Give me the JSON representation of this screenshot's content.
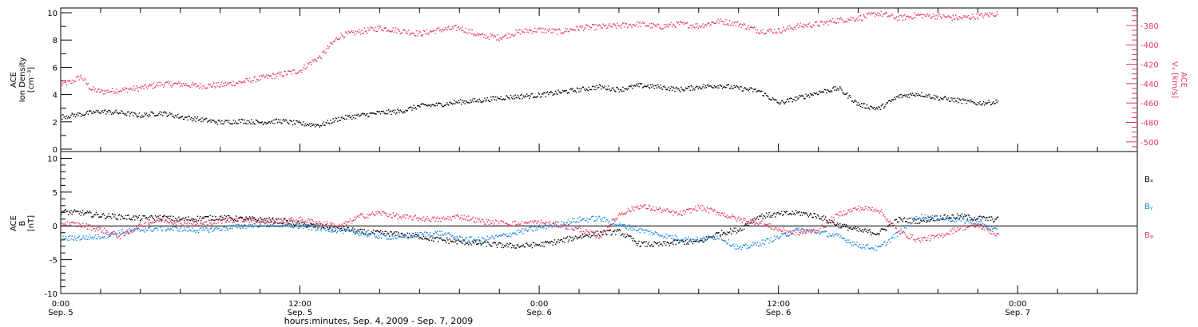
{
  "colors": {
    "density": "#000000",
    "vx": "#e6385f",
    "bx": "#000000",
    "by": "#1a86e0",
    "bz": "#e6385f",
    "frame": "#000000"
  },
  "footer": {
    "xlabel": "hours:minutes, Sep.  4, 2009 - Sep.  7, 2009"
  },
  "x_ticks": [
    {
      "hour": 0,
      "time": "0:00",
      "date": "Sep. 5"
    },
    {
      "hour": 12,
      "time": "12:00",
      "date": "Sep. 5"
    },
    {
      "hour": 24,
      "time": "0:00",
      "date": "Sep. 6"
    },
    {
      "hour": 36,
      "time": "12:00",
      "date": "Sep. 6"
    },
    {
      "hour": 48,
      "time": "0:00",
      "date": "Sep. 7"
    }
  ],
  "chart_data": [
    {
      "type": "scatter",
      "panel": "top",
      "xlabel": "hours:minutes, Sep.  4, 2009 - Sep.  7, 2009",
      "ylabel_left": [
        "ACE",
        "Ion Density",
        "[cm⁻³]"
      ],
      "ylabel_right": [
        "ACE",
        "Vₓ [km/s]"
      ],
      "xlim": [
        0,
        54
      ],
      "ylim_left": [
        0,
        10
      ],
      "yticks_left": [
        "0",
        "2",
        "4",
        "6",
        "8",
        "10"
      ],
      "ylim_right": [
        -510,
        -362
      ],
      "yticks_right": [
        "-380",
        "-400",
        "-420",
        "-440",
        "-460",
        "-480",
        "-500"
      ],
      "series": [
        {
          "axis": "left",
          "x": [
            0,
            1,
            2,
            3,
            4,
            5,
            6,
            7,
            8,
            9,
            10,
            11,
            12,
            13,
            14,
            15,
            16,
            17,
            18,
            19,
            20,
            21,
            22,
            23,
            24,
            25,
            26,
            27,
            28,
            29,
            30,
            31,
            32,
            33,
            34,
            35,
            36,
            37,
            38,
            39,
            40,
            41,
            42,
            43,
            44,
            45,
            46,
            47
          ],
          "values": [
            2.4,
            2.6,
            2.8,
            2.7,
            2.5,
            2.7,
            2.4,
            2.2,
            2.0,
            2.1,
            2.0,
            2.1,
            1.9,
            1.8,
            2.3,
            2.5,
            2.7,
            2.8,
            3.2,
            3.3,
            3.5,
            3.6,
            3.8,
            3.9,
            4.0,
            4.2,
            4.4,
            4.6,
            4.4,
            4.7,
            4.6,
            4.4,
            4.6,
            4.7,
            4.5,
            4.3,
            3.4,
            3.8,
            4.2,
            4.5,
            3.3,
            3.0,
            3.9,
            4.1,
            3.8,
            3.6,
            3.4,
            3.5
          ]
        },
        {
          "axis": "right",
          "x": [
            0,
            0.5,
            1,
            1.5,
            2,
            3,
            4,
            5,
            6,
            7,
            8,
            9,
            10,
            11,
            12,
            12.5,
            13,
            13.5,
            14,
            15,
            16,
            17,
            18,
            19,
            20,
            21,
            22,
            23,
            24,
            25,
            26,
            27,
            28,
            29,
            30,
            31,
            32,
            33,
            34,
            35,
            36,
            37,
            38,
            39,
            40,
            41,
            42,
            43,
            44,
            45,
            46,
            47
          ],
          "values": [
            -440,
            -438,
            -432,
            -445,
            -448,
            -446,
            -444,
            -440,
            -440,
            -442,
            -441,
            -438,
            -434,
            -430,
            -426,
            -418,
            -412,
            -400,
            -390,
            -386,
            -382,
            -385,
            -388,
            -384,
            -382,
            -390,
            -392,
            -386,
            -384,
            -386,
            -382,
            -381,
            -380,
            -378,
            -381,
            -378,
            -380,
            -375,
            -378,
            -385,
            -385,
            -380,
            -378,
            -374,
            -372,
            -367,
            -372,
            -369,
            -370,
            -372,
            -370,
            -367
          ]
        }
      ]
    },
    {
      "type": "scatter",
      "panel": "bottom",
      "xlabel": "hours:minutes, Sep.  4, 2009 - Sep.  7, 2009",
      "ylabel": [
        "ACE",
        "B",
        "[nT]"
      ],
      "xlim": [
        0,
        54
      ],
      "ylim": [
        -10,
        11
      ],
      "yticks": [
        "10",
        "5",
        "0",
        "-5",
        "-10"
      ],
      "legend": [
        "Bₓ",
        "Bᵧ",
        "Bᵩ"
      ],
      "legend_position": "right",
      "series": [
        {
          "name": "Bx",
          "x": [
            0,
            1,
            2,
            3,
            4,
            5,
            6,
            7,
            8,
            9,
            10,
            11,
            12,
            13,
            14,
            15,
            16,
            17,
            18,
            19,
            20,
            21,
            22,
            23,
            24,
            25,
            26,
            27,
            28,
            29,
            30,
            31,
            32,
            33,
            34,
            35,
            36,
            37,
            38,
            39,
            40,
            41,
            42,
            43,
            44,
            45,
            46,
            47
          ],
          "values": [
            2.2,
            2.0,
            1.6,
            1.4,
            1.2,
            1.3,
            1.0,
            1.2,
            1.3,
            1.1,
            1.0,
            0.8,
            0.3,
            0.0,
            -0.3,
            -0.8,
            -1.0,
            -1.2,
            -1.5,
            -2.0,
            -2.3,
            -2.5,
            -2.8,
            -2.9,
            -2.7,
            -2.2,
            -1.5,
            -1.0,
            -0.8,
            -2.6,
            -2.7,
            -2.3,
            -2.3,
            -1.0,
            -0.5,
            1.5,
            1.8,
            2.0,
            1.5,
            0.2,
            -0.6,
            -1.0,
            1.0,
            0.8,
            1.3,
            1.5,
            1.2,
            1.0
          ]
        },
        {
          "name": "By",
          "x": [
            0,
            1,
            2,
            3,
            4,
            5,
            6,
            7,
            8,
            9,
            10,
            11,
            12,
            13,
            14,
            15,
            16,
            17,
            18,
            19,
            20,
            21,
            22,
            23,
            24,
            25,
            26,
            27,
            28,
            29,
            30,
            31,
            32,
            33,
            34,
            35,
            36,
            37,
            38,
            39,
            40,
            41,
            42,
            43,
            44,
            45,
            46,
            47
          ],
          "values": [
            -1.8,
            -1.7,
            -1.5,
            -0.8,
            -0.5,
            -0.3,
            -0.4,
            -0.6,
            -0.3,
            0.0,
            0.3,
            0.2,
            0.0,
            -0.3,
            -0.6,
            -1.0,
            -1.5,
            -1.6,
            -1.2,
            -1.0,
            -1.8,
            -2.0,
            -1.5,
            -0.8,
            -0.2,
            0.4,
            1.0,
            1.2,
            0.2,
            -0.5,
            -1.2,
            -1.8,
            -2.0,
            -1.5,
            -3.3,
            -2.5,
            -1.6,
            -0.5,
            -0.8,
            -1.5,
            -2.8,
            -3.3,
            -1.0,
            1.5,
            1.2,
            1.0,
            0.5,
            -0.8
          ]
        },
        {
          "name": "Bz",
          "x": [
            0,
            1,
            2,
            3,
            4,
            5,
            6,
            7,
            8,
            9,
            10,
            11,
            12,
            13,
            14,
            15,
            16,
            17,
            18,
            19,
            20,
            21,
            22,
            23,
            24,
            25,
            26,
            27,
            28,
            29,
            30,
            31,
            32,
            33,
            34,
            35,
            36,
            37,
            38,
            39,
            40,
            41,
            42,
            43,
            44,
            45,
            46,
            47
          ],
          "values": [
            0.5,
            0.2,
            -0.5,
            -1.5,
            0.2,
            1.0,
            0.5,
            0.3,
            0.8,
            1.1,
            0.8,
            0.8,
            1.0,
            0.5,
            0.0,
            1.5,
            2.0,
            1.4,
            1.2,
            1.0,
            1.5,
            0.8,
            0.5,
            0.4,
            0.6,
            0.2,
            -0.5,
            -1.5,
            1.8,
            3.0,
            2.5,
            1.8,
            2.8,
            2.0,
            1.0,
            0.6,
            -0.5,
            -1.0,
            -0.5,
            1.8,
            2.7,
            2.5,
            -0.8,
            -2.0,
            -1.5,
            -0.3,
            0.2,
            -1.3
          ]
        }
      ]
    }
  ]
}
